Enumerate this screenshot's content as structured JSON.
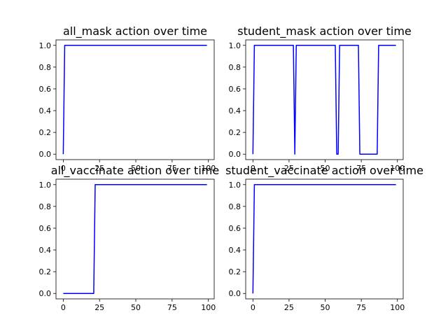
{
  "chart_data": [
    {
      "type": "line",
      "title": "all_mask action over time",
      "xlabel": "",
      "ylabel": "",
      "xlim": [
        -5,
        104
      ],
      "ylim": [
        -0.05,
        1.05
      ],
      "xticks": [
        0,
        25,
        50,
        75,
        100
      ],
      "yticks": [
        0.0,
        0.2,
        0.4,
        0.6,
        0.8,
        1.0
      ],
      "ytick_labels": [
        "0.0",
        "0.2",
        "0.4",
        "0.6",
        "0.8",
        "1.0"
      ],
      "grid": false,
      "color": "#0000ff",
      "series": [
        {
          "x": [
            0,
            1,
            99
          ],
          "y": [
            0,
            1,
            1
          ]
        }
      ]
    },
    {
      "type": "line",
      "title": "student_mask action over time",
      "xlabel": "",
      "ylabel": "",
      "xlim": [
        -5,
        104
      ],
      "ylim": [
        -0.05,
        1.05
      ],
      "xticks": [
        0,
        25,
        50,
        75,
        100
      ],
      "yticks": [
        0.0,
        0.2,
        0.4,
        0.6,
        0.8,
        1.0
      ],
      "ytick_labels": [
        "0.0",
        "0.2",
        "0.4",
        "0.6",
        "0.8",
        "1.0"
      ],
      "grid": false,
      "color": "#0000ff",
      "series": [
        {
          "x": [
            0,
            1,
            28,
            29,
            30,
            57,
            58,
            59,
            60,
            73,
            74,
            86,
            87,
            99
          ],
          "y": [
            0,
            1,
            1,
            0,
            1,
            1,
            0,
            0,
            1,
            1,
            0,
            0,
            1,
            1
          ]
        }
      ]
    },
    {
      "type": "line",
      "title": "all_vaccinate action over time",
      "xlabel": "",
      "ylabel": "",
      "xlim": [
        -5,
        104
      ],
      "ylim": [
        -0.05,
        1.05
      ],
      "xticks": [
        0,
        25,
        50,
        75,
        100
      ],
      "yticks": [
        0.0,
        0.2,
        0.4,
        0.6,
        0.8,
        1.0
      ],
      "ytick_labels": [
        "0.0",
        "0.2",
        "0.4",
        "0.6",
        "0.8",
        "1.0"
      ],
      "grid": false,
      "color": "#0000ff",
      "series": [
        {
          "x": [
            0,
            21,
            22,
            99
          ],
          "y": [
            0,
            0,
            1,
            1
          ]
        }
      ]
    },
    {
      "type": "line",
      "title": "student_vaccinate action over time",
      "xlabel": "",
      "ylabel": "",
      "xlim": [
        -5,
        104
      ],
      "ylim": [
        -0.05,
        1.05
      ],
      "xticks": [
        0,
        25,
        50,
        75,
        100
      ],
      "yticks": [
        0.0,
        0.2,
        0.4,
        0.6,
        0.8,
        1.0
      ],
      "ytick_labels": [
        "0.0",
        "0.2",
        "0.4",
        "0.6",
        "0.8",
        "1.0"
      ],
      "grid": false,
      "color": "#0000ff",
      "series": [
        {
          "x": [
            0,
            1,
            99
          ],
          "y": [
            0,
            1,
            1
          ]
        }
      ]
    }
  ]
}
